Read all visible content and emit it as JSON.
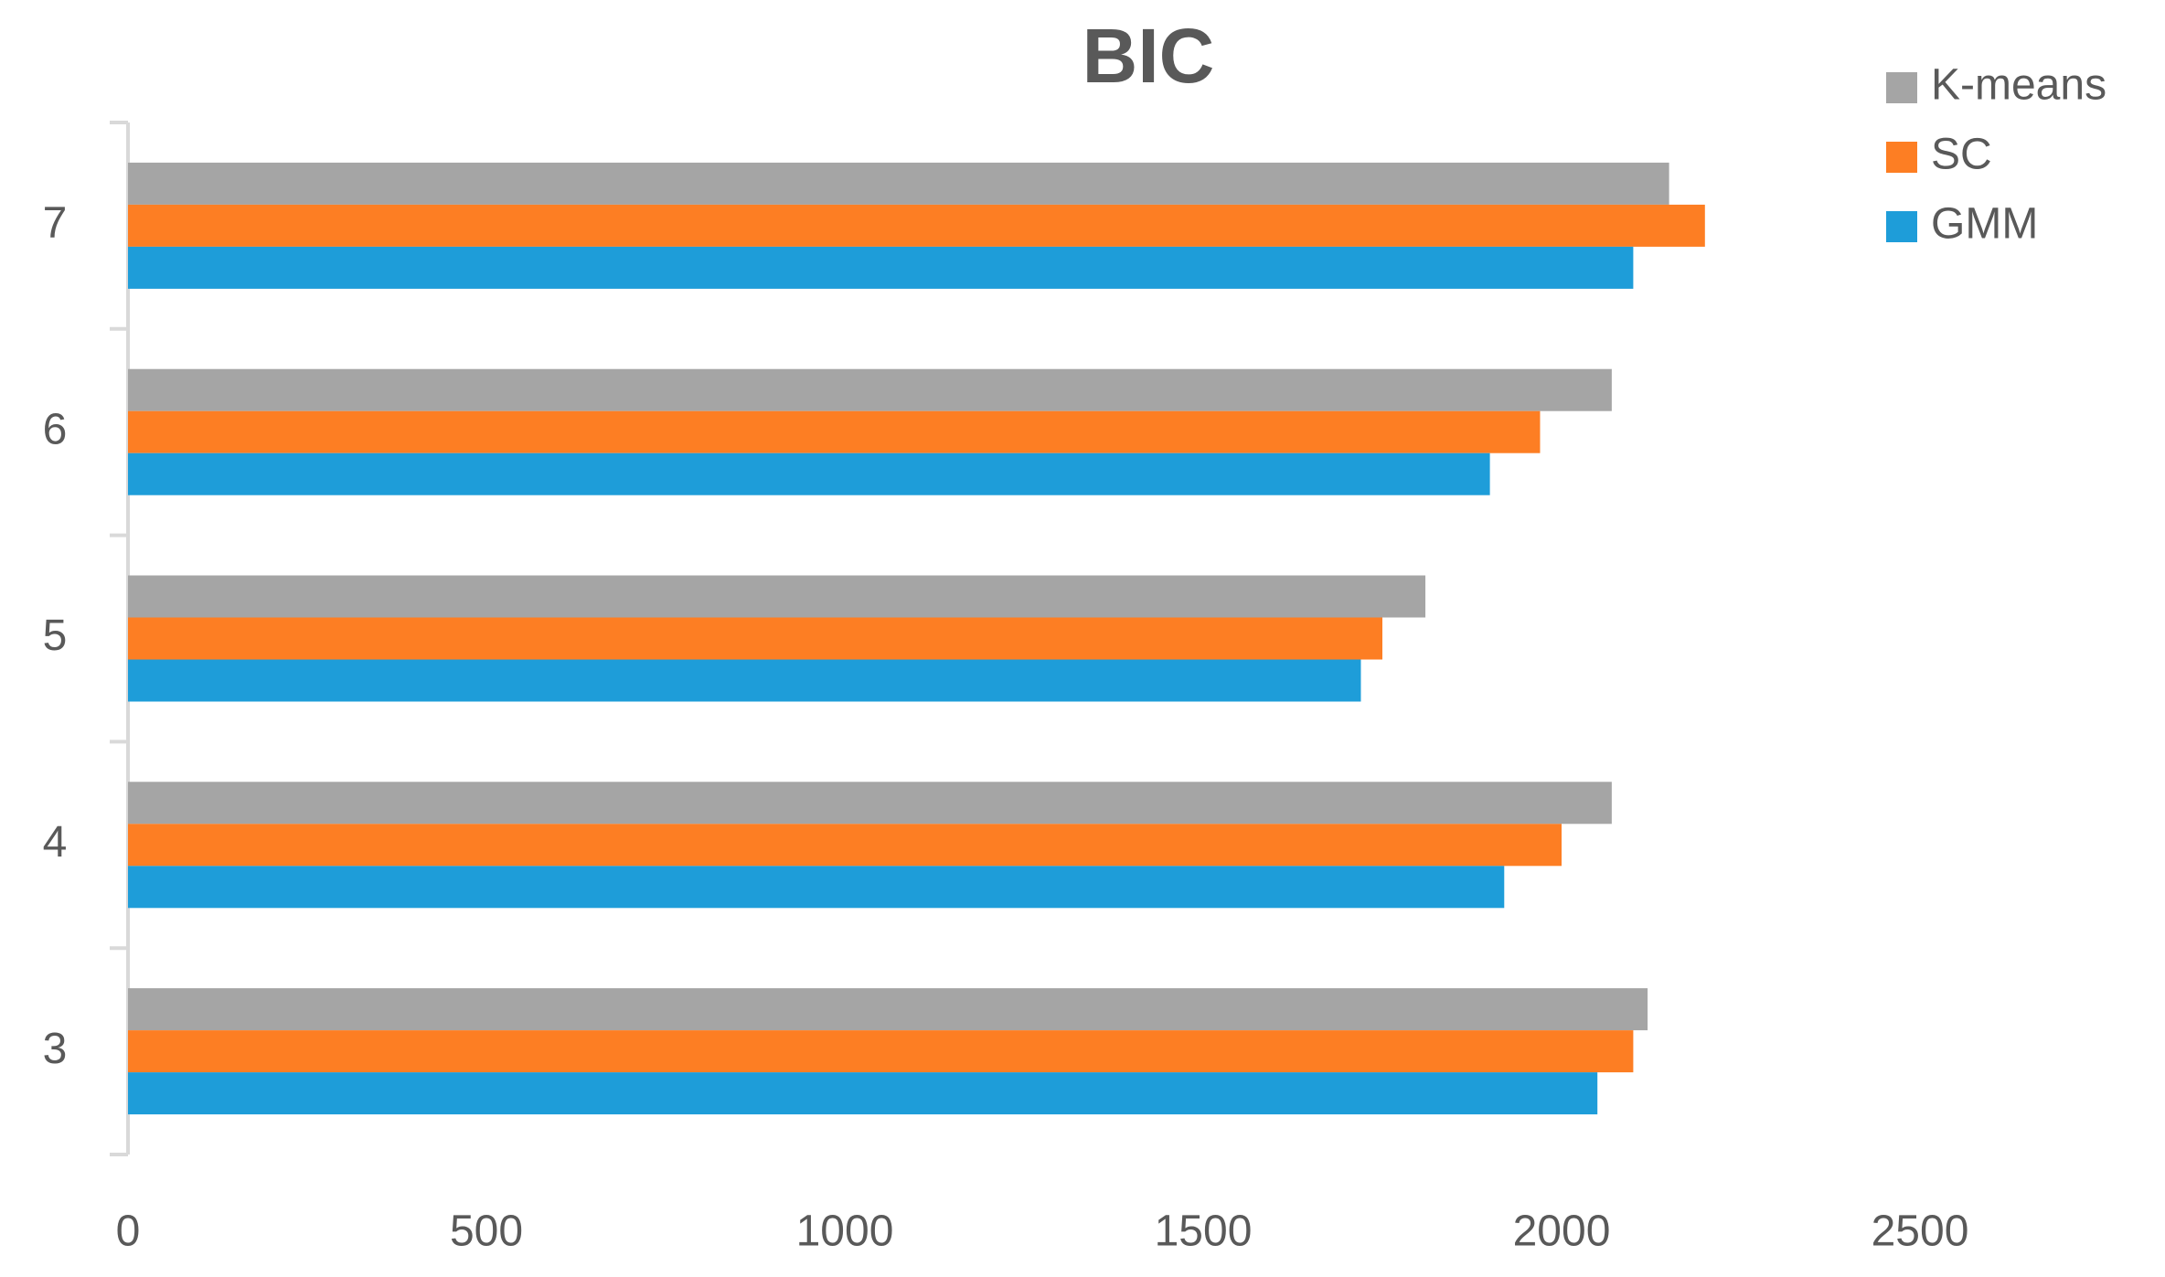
{
  "chart_data": {
    "type": "barh",
    "title": "BIC",
    "categories": [
      "3",
      "4",
      "5",
      "6",
      "7"
    ],
    "series": [
      {
        "name": "K-means",
        "color": "#a5a5a5",
        "values": [
          2120,
          2070,
          1810,
          2070,
          2150
        ]
      },
      {
        "name": "SC",
        "color": "#fd7e23",
        "values": [
          2100,
          2000,
          1750,
          1970,
          2200
        ]
      },
      {
        "name": "GMM",
        "color": "#1e9dd9",
        "values": [
          2050,
          1920,
          1720,
          1900,
          2100
        ]
      }
    ],
    "xlim": [
      0,
      2500
    ],
    "xticks": [
      0,
      500,
      1000,
      1500,
      2000,
      2500
    ],
    "grid": false,
    "legend": "top-right"
  }
}
